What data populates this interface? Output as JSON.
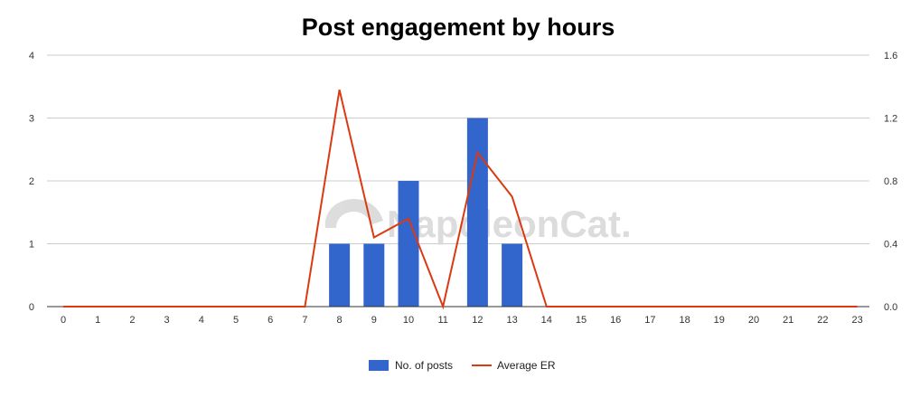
{
  "chart_data": {
    "type": "bar+line",
    "title": "Post engagement by hours",
    "categories": [
      "0",
      "1",
      "2",
      "3",
      "4",
      "5",
      "6",
      "7",
      "8",
      "9",
      "10",
      "11",
      "12",
      "13",
      "14",
      "15",
      "16",
      "17",
      "18",
      "19",
      "20",
      "21",
      "22",
      "23"
    ],
    "series": [
      {
        "name": "No. of posts",
        "type": "bar",
        "axis": "left",
        "color": "#3366cc",
        "values": [
          0,
          0,
          0,
          0,
          0,
          0,
          0,
          0,
          1,
          1,
          2,
          0,
          3,
          1,
          0,
          0,
          0,
          0,
          0,
          0,
          0,
          0,
          0,
          0
        ]
      },
      {
        "name": "Average ER",
        "type": "line",
        "axis": "right",
        "color": "#dc3912",
        "values": [
          0,
          0,
          0,
          0,
          0,
          0,
          0,
          0,
          1.38,
          0.44,
          0.56,
          0,
          0.98,
          0.7,
          0,
          0,
          0,
          0,
          0,
          0,
          0,
          0,
          0,
          0
        ]
      }
    ],
    "y_left": {
      "ylim": [
        0,
        4
      ],
      "ticks": [
        "0",
        "1",
        "2",
        "3",
        "4"
      ]
    },
    "y_right": {
      "ylim": [
        0,
        1.6
      ],
      "ticks": [
        "0.0",
        "0.4",
        "0.8",
        "1.2",
        "1.6"
      ]
    },
    "grid": true,
    "legend": "bottom",
    "watermark": "NapoleonCat."
  }
}
